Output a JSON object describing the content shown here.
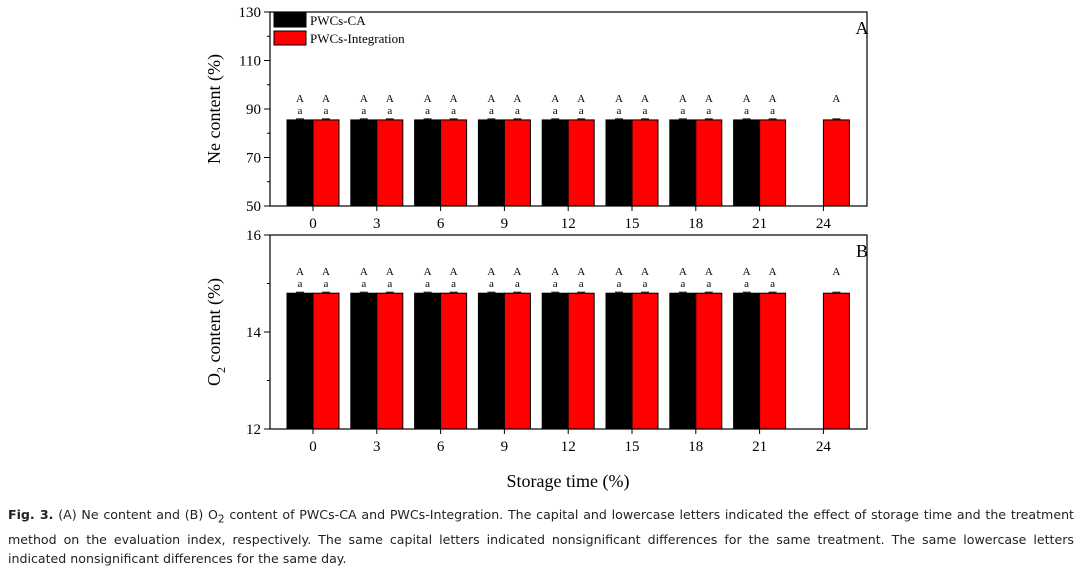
{
  "chart_data": [
    {
      "type": "bar",
      "panel_label": "A",
      "xlabel": "",
      "ylabel": "Ne content (%)",
      "ylim": [
        50,
        130
      ],
      "yticks": [
        "50",
        "70",
        "90",
        "110",
        "130"
      ],
      "categories": [
        "0",
        "3",
        "6",
        "9",
        "12",
        "15",
        "18",
        "21",
        "24"
      ],
      "legend_position": "top-left",
      "series": [
        {
          "name": "PWCs-CA",
          "color": "#000000",
          "values": [
            85.5,
            85.5,
            85.5,
            85.5,
            85.5,
            85.5,
            85.5,
            85.5,
            null
          ],
          "upper_letters": [
            "A",
            "A",
            "A",
            "A",
            "A",
            "A",
            "A",
            "A",
            ""
          ],
          "lower_letters": [
            "a",
            "a",
            "a",
            "a",
            "a",
            "a",
            "a",
            "a",
            ""
          ]
        },
        {
          "name": "PWCs-Integration",
          "color": "#ff0000",
          "values": [
            85.5,
            85.5,
            85.5,
            85.5,
            85.5,
            85.5,
            85.5,
            85.5,
            85.5
          ],
          "upper_letters": [
            "A",
            "A",
            "A",
            "A",
            "A",
            "A",
            "A",
            "A",
            "A"
          ],
          "lower_letters": [
            "a",
            "a",
            "a",
            "a",
            "a",
            "a",
            "a",
            "a",
            ""
          ]
        }
      ]
    },
    {
      "type": "bar",
      "panel_label": "B",
      "xlabel": "Storage time (%)",
      "ylabel_main": "O",
      "ylabel_sub": "2",
      "ylabel_rest": " content (%)",
      "ylim": [
        12,
        16
      ],
      "yticks": [
        "12",
        "14",
        "16"
      ],
      "categories": [
        "0",
        "3",
        "6",
        "9",
        "12",
        "15",
        "18",
        "21",
        "24"
      ],
      "series": [
        {
          "name": "PWCs-CA",
          "color": "#000000",
          "values": [
            14.8,
            14.8,
            14.8,
            14.8,
            14.8,
            14.8,
            14.8,
            14.8,
            null
          ],
          "upper_letters": [
            "A",
            "A",
            "A",
            "A",
            "A",
            "A",
            "A",
            "A",
            ""
          ],
          "lower_letters": [
            "a",
            "a",
            "a",
            "a",
            "a",
            "a",
            "a",
            "a",
            ""
          ]
        },
        {
          "name": "PWCs-Integration",
          "color": "#ff0000",
          "values": [
            14.8,
            14.8,
            14.8,
            14.8,
            14.8,
            14.8,
            14.8,
            14.8,
            14.8
          ],
          "upper_letters": [
            "A",
            "A",
            "A",
            "A",
            "A",
            "A",
            "A",
            "A",
            "A"
          ],
          "lower_letters": [
            "a",
            "a",
            "a",
            "a",
            "a",
            "a",
            "a",
            "a",
            ""
          ]
        }
      ]
    }
  ],
  "caption": {
    "figure_number": "Fig. 3.",
    "text_a": " (A) Ne content and (B) O",
    "text_sub": "2",
    "text_b": " content of PWCs-CA and PWCs-Integration. The capital and lowercase letters indicated the effect of storage time and the treatment method on the evaluation index, respectively. The same capital letters indicated nonsignificant differences for the same treatment. The same lowercase letters indicated nonsignificant differences for the same day."
  }
}
